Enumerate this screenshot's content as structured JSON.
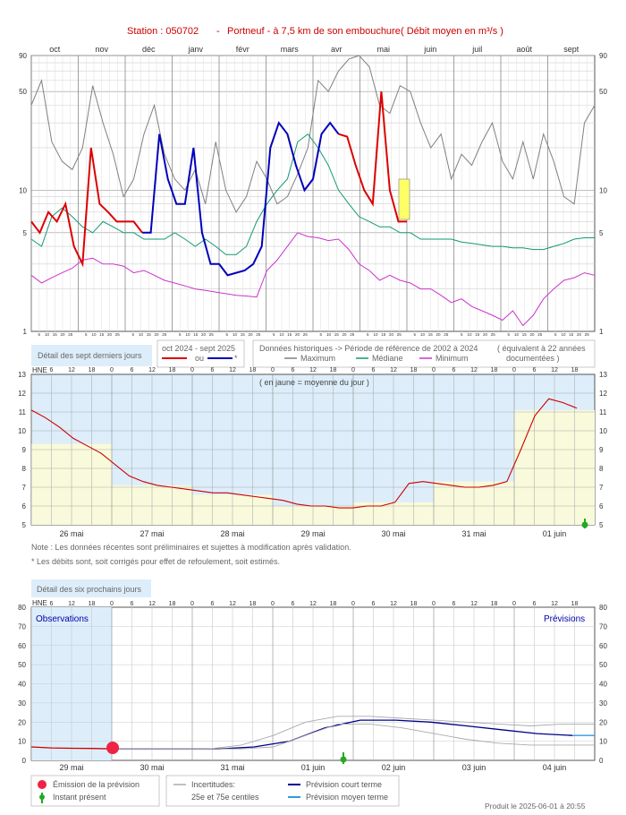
{
  "header": {
    "station_label": "Station : 050702",
    "separator": "-",
    "river_label": "Portneuf - à 7,5 km de son embouchure",
    "unit_label": "( Débit moyen en m³/s )"
  },
  "colors": {
    "title": "#cc0000",
    "red": "#dd0000",
    "blue": "#0000bb",
    "max": "#808080",
    "median": "#119977",
    "min": "#cc33cc",
    "panel_blue": "#ddeefa",
    "panel_yellow": "#f8fadb",
    "forecast_short": "#000088",
    "forecast_mid": "#3399dd"
  },
  "chart_data": [
    {
      "type": "line",
      "id": "annual",
      "months": [
        "oct",
        "nov",
        "déc",
        "janv",
        "févr",
        "mars",
        "avr",
        "mai",
        "juin",
        "juil",
        "août",
        "sept"
      ],
      "day_ticks": [
        "5",
        "10",
        "15",
        "20",
        "25"
      ],
      "y_ticks_left": [
        "90",
        "50",
        "10",
        "5",
        "1"
      ],
      "y_ticks_right": [
        "90",
        "50",
        "10",
        "5",
        "1"
      ],
      "ylim": [
        1,
        90
      ],
      "yscale": "log",
      "series": [
        {
          "name": "Maximum",
          "color": "#808080",
          "values": [
            40,
            60,
            22,
            16,
            14,
            20,
            55,
            30,
            18,
            9,
            12,
            25,
            40,
            18,
            12,
            10,
            14,
            8,
            22,
            10,
            7,
            9,
            16,
            12,
            8,
            9,
            13,
            20,
            60,
            50,
            70,
            85,
            90,
            75,
            40,
            35,
            55,
            50,
            30,
            20,
            25,
            12,
            18,
            15,
            22,
            30,
            16,
            12,
            22,
            12,
            25,
            16,
            9,
            8,
            30,
            40
          ]
        },
        {
          "name": "Médiane",
          "color": "#119977",
          "values": [
            4.5,
            4,
            6.5,
            7.5,
            6.5,
            5.5,
            5,
            6,
            5.5,
            5,
            5,
            4.5,
            4.5,
            4.5,
            5,
            4.5,
            4,
            4.5,
            4,
            3.5,
            3.5,
            4,
            6,
            8,
            10,
            12,
            22,
            25,
            20,
            15,
            10,
            8,
            6.5,
            6,
            5.5,
            5.5,
            5,
            5,
            4.5,
            4.5,
            4.5,
            4.5,
            4.3,
            4.2,
            4.1,
            4,
            4,
            3.9,
            3.9,
            3.8,
            3.8,
            4,
            4.2,
            4.5,
            4.6,
            4.6
          ]
        },
        {
          "name": "Minimum",
          "color": "#cc33cc",
          "values": [
            2.5,
            2.2,
            2.4,
            2.6,
            2.8,
            3.2,
            3.3,
            3,
            3,
            2.9,
            2.6,
            2.7,
            2.5,
            2.3,
            2.2,
            2.1,
            2,
            1.95,
            1.9,
            1.85,
            1.8,
            1.78,
            1.75,
            2.7,
            3.2,
            4,
            5,
            4.7,
            4.6,
            4.4,
            4.5,
            3.8,
            3,
            2.7,
            2.3,
            2.5,
            2.3,
            2.2,
            2,
            2,
            1.8,
            1.6,
            1.7,
            1.5,
            1.4,
            1.3,
            1.2,
            1.4,
            1.1,
            1.3,
            1.7,
            2,
            2.3,
            2.4,
            2.6,
            2.5
          ]
        },
        {
          "name": "oct 2024 - sept 2025 (corrigé)",
          "color": "#dd0000",
          "values": [
            6,
            5,
            7,
            6,
            8,
            4,
            3,
            20,
            8,
            7,
            6,
            6,
            6,
            5,
            null,
            null,
            null,
            null,
            null,
            null,
            null,
            null,
            null,
            null,
            null,
            null,
            null,
            null,
            null,
            null,
            null,
            null,
            null,
            null,
            null,
            null,
            25,
            24,
            15,
            10,
            8,
            50,
            10,
            6,
            6
          ]
        },
        {
          "name": "oct 2024 - sept 2025 (estimé)",
          "color": "#0000bb",
          "values": [
            null,
            null,
            null,
            null,
            null,
            null,
            null,
            null,
            null,
            null,
            null,
            null,
            null,
            5,
            5,
            25,
            12,
            8,
            8,
            20,
            5,
            3,
            3,
            2.5,
            2.6,
            2.7,
            3,
            4,
            20,
            30,
            25,
            15,
            10,
            12,
            25,
            30,
            25
          ]
        }
      ]
    },
    {
      "type": "line",
      "id": "seven_days",
      "title": "Détail des sept derniers jours",
      "x_unit": "HNE",
      "hour_ticks": [
        "0",
        "6",
        "12",
        "18"
      ],
      "days": [
        "26 mai",
        "27 mai",
        "28 mai",
        "29 mai",
        "30 mai",
        "31 mai",
        "01 juin"
      ],
      "y_ticks": [
        "13",
        "12",
        "11",
        "10",
        "9",
        "8",
        "7",
        "6",
        "5"
      ],
      "ylim": [
        5,
        13
      ],
      "note": "( en jaune = moyenne du jour )",
      "daily_mean": [
        9.3,
        7.1,
        6.6,
        6.0,
        6.2,
        7.3,
        11.1
      ],
      "series": [
        {
          "name": "Débit",
          "color": "#cc0000",
          "values": [
            11.1,
            10.7,
            10.2,
            9.6,
            9.2,
            8.8,
            8.2,
            7.6,
            7.3,
            7.1,
            7.0,
            6.9,
            6.8,
            6.7,
            6.7,
            6.6,
            6.5,
            6.4,
            6.3,
            6.1,
            6.0,
            6.0,
            5.9,
            5.9,
            6.0,
            6.0,
            6.2,
            7.2,
            7.3,
            7.2,
            7.1,
            7.0,
            7.0,
            7.1,
            7.3,
            9.0,
            10.8,
            11.7,
            11.5,
            11.2
          ]
        }
      ]
    },
    {
      "type": "line",
      "id": "six_days",
      "title": "Détail des six prochains jours",
      "x_unit": "HNE",
      "hour_ticks": [
        "0",
        "6",
        "12",
        "18"
      ],
      "days": [
        "29 mai",
        "30 mai",
        "31 mai",
        "01 juin",
        "02 juin",
        "03 juin",
        "04 juin"
      ],
      "y_ticks": [
        "80",
        "70",
        "60",
        "50",
        "40",
        "30",
        "20",
        "10",
        "0"
      ],
      "ylim": [
        0,
        80
      ],
      "observations_label": "Observations",
      "forecast_label": "Prévisions",
      "series": [
        {
          "name": "Observations",
          "color": "#cc0000",
          "values": [
            7,
            6.5,
            6.3,
            6.2,
            6
          ]
        },
        {
          "name": "Prévision court terme",
          "color": "#000088",
          "values": [
            6,
            6,
            6,
            6,
            7,
            10,
            17,
            21,
            21,
            20,
            18,
            16,
            14,
            13
          ]
        },
        {
          "name": "Prévision moyen terme",
          "color": "#3399dd",
          "values": [
            13,
            13,
            13
          ]
        },
        {
          "name": "Incertitudes 25e",
          "color": "#aaaaaa",
          "values": [
            6,
            6,
            6,
            6,
            6,
            7,
            13,
            19,
            19,
            17,
            14,
            11,
            9,
            8,
            8,
            8
          ]
        },
        {
          "name": "Incertitudes 75e",
          "color": "#aaaaaa",
          "values": [
            6,
            6,
            6,
            6,
            8,
            13,
            20,
            23,
            23,
            22,
            21,
            20,
            19,
            18,
            19,
            19
          ]
        }
      ]
    }
  ],
  "legend_annual": {
    "period_label": "oct 2024 - sept 2025",
    "or_label": "ou",
    "asterisk": "*",
    "historic_label": "Données historiques -> Période de référence  de 2002 à 2024",
    "equiv_label": "( équivalent à 22 années",
    "documented_label": "documentées )",
    "max_label": "Maximum",
    "median_label": "Médiane",
    "min_label": "Minimum"
  },
  "notes": {
    "line1": "Note : Les données récentes sont préliminaires et sujettes à modification après validation.",
    "line2": "* Les débits sont, soit corrigés pour effet de refoulement, soit estimés."
  },
  "legend_forecast": {
    "emission": "Émission de la prévision",
    "instant": "Instant présent",
    "uncertainty": "Incertitudes:",
    "centiles": "25e et 75e centiles",
    "short_term": "Prévision court terme",
    "mid_term": "Prévision moyen terme"
  },
  "footer": {
    "produced": "Produit le 2025-06-01 à 20:55"
  }
}
